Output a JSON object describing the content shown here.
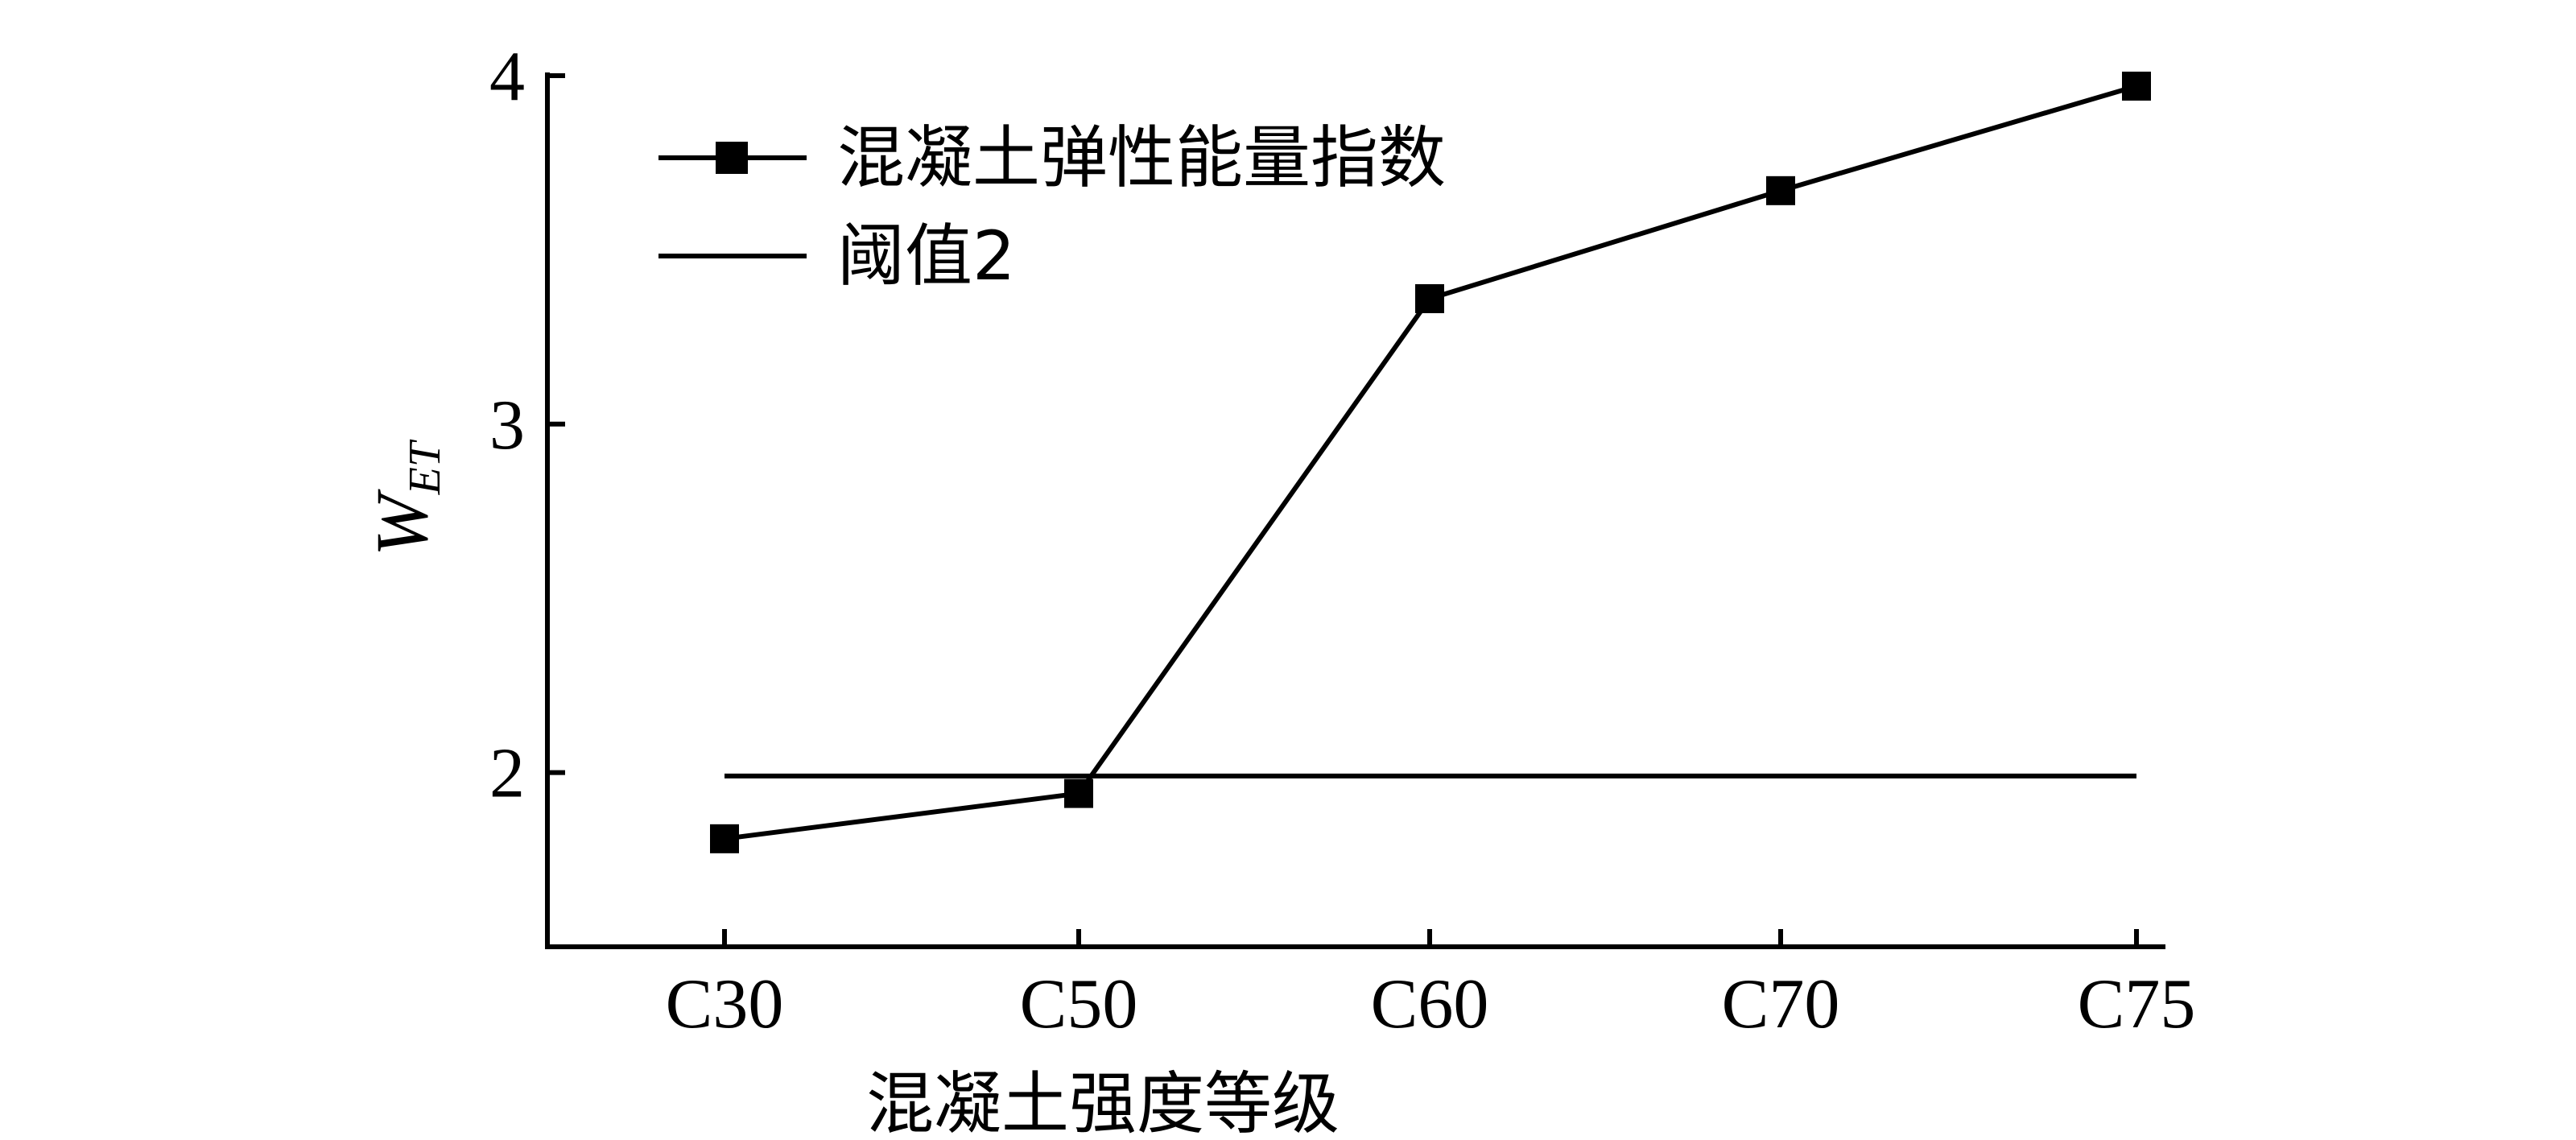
{
  "chart_data": {
    "type": "line",
    "categories": [
      "C30",
      "C50",
      "C60",
      "C70",
      "C75"
    ],
    "series": [
      {
        "name": "混凝土弹性能量指数",
        "values": [
          1.81,
          1.94,
          3.36,
          3.67,
          3.97
        ],
        "marker": "square",
        "color": "#000000"
      },
      {
        "name": "阈值2",
        "values": [
          1.99,
          1.99,
          1.99,
          1.99,
          1.99
        ],
        "marker": "none",
        "color": "#000000"
      }
    ],
    "xlabel": "混凝土强度等级",
    "ylabel": {
      "main": "W",
      "sub": "ET"
    },
    "ylim": [
      1.5,
      4.0
    ],
    "yticks": [
      "2",
      "3",
      "4"
    ],
    "grid": false,
    "legend_position": "top-left"
  }
}
